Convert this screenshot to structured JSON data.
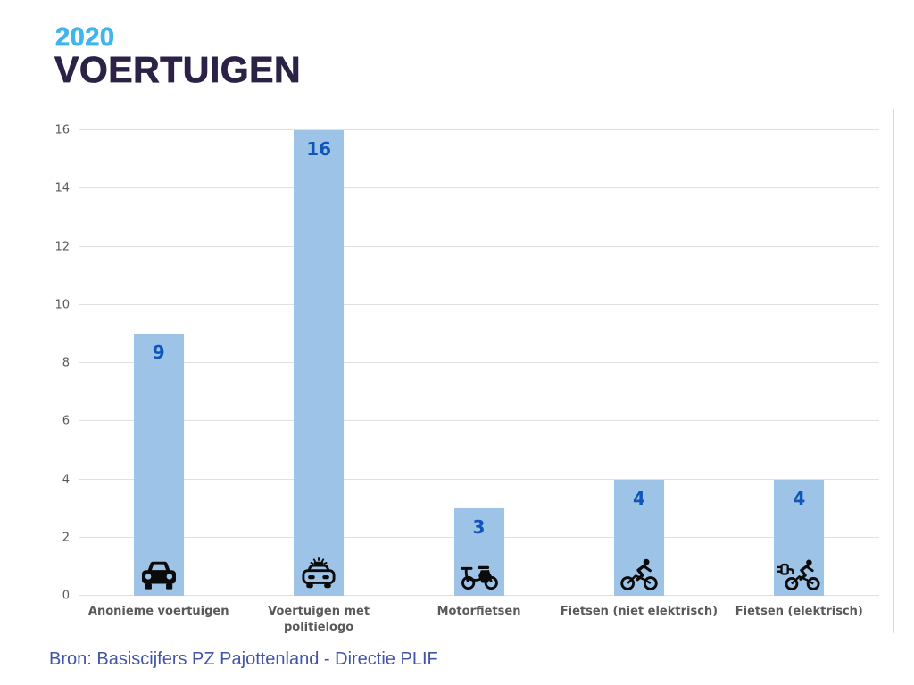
{
  "title": {
    "year": "2020",
    "heading": "VOERTUIGEN"
  },
  "source_text": "Bron: Basiscijfers PZ Pajottenland - Directie PLIF",
  "colors": {
    "year_accent": "#3EB5EE",
    "heading_text": "#2B2246",
    "bar_fill": "#9DC3E6",
    "value_label": "#1155BB",
    "axis_text": "#5A5A5A",
    "category_text": "#595959",
    "gridline": "#E1E1E1",
    "source_text": "#4254A9",
    "icon": "#0B0B0B"
  },
  "chart_data": {
    "type": "bar",
    "title": "2020 VOERTUIGEN",
    "categories": [
      "Anonieme voertuigen",
      "Voertuigen met politielogo",
      "Motorfietsen",
      "Fietsen (niet elektrisch)",
      "Fietsen (elektrisch)"
    ],
    "x_tick_labels": [
      "Anonieme voertuigen",
      "Voertuigen met\npolitielogo",
      "Motorfietsen",
      "Fietsen (niet elektrisch)",
      "Fietsen (elektrisch)"
    ],
    "values": [
      9,
      16,
      3,
      4,
      4
    ],
    "icons": [
      "car-icon",
      "police-car-icon",
      "motorcycle-icon",
      "cyclist-icon",
      "electric-bicycle-icon"
    ],
    "xlabel": "",
    "ylabel": "",
    "ylim": [
      0,
      16
    ],
    "yticks": [
      0,
      2,
      4,
      6,
      8,
      10,
      12,
      14,
      16
    ],
    "grid": true,
    "legend": false,
    "bar_color": "#9DC3E6"
  }
}
